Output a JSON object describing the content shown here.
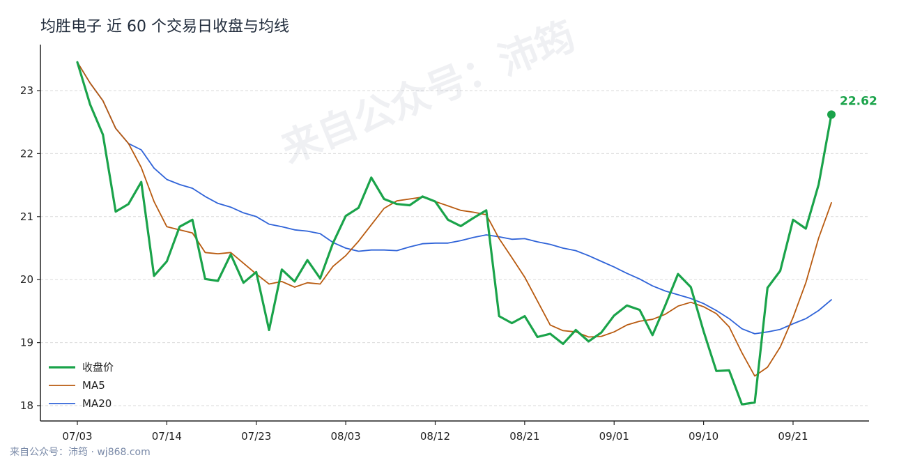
{
  "title": "均胜电子 近 60 个交易日收盘与均线",
  "watermark": "来自公众号：沛筠",
  "footer": "来自公众号：沛筠 · wj868.com",
  "last_label": "22.62",
  "colors": {
    "close": "#1aa34a",
    "ma5": "#b85a0f",
    "ma20": "#2f63d8",
    "grid": "#d9d9d9"
  },
  "chart_data": {
    "type": "line",
    "title": "均胜电子 近 60 个交易日收盘与均线",
    "xlabel": "",
    "ylabel": "",
    "ylim": [
      17.9,
      23.7
    ],
    "grid": true,
    "legend_position": "bottom-left",
    "x_tick_labels": [
      "07/03",
      "07/14",
      "07/23",
      "08/03",
      "08/12",
      "08/21",
      "09/01",
      "09/10",
      "09/21"
    ],
    "y_ticks": [
      18,
      19,
      20,
      21,
      22,
      23
    ],
    "x_tick_index": [
      0,
      7,
      14,
      21,
      28,
      35,
      42,
      49,
      56
    ],
    "series": [
      {
        "name": "收盘价",
        "values": [
          23.45,
          22.78,
          22.3,
          21.08,
          21.2,
          21.55,
          20.06,
          20.29,
          20.84,
          20.95,
          20.01,
          19.98,
          20.4,
          19.95,
          20.12,
          19.2,
          20.16,
          19.97,
          20.31,
          20.02,
          20.58,
          21.01,
          21.14,
          21.62,
          21.28,
          21.2,
          21.18,
          21.32,
          21.24,
          20.95,
          20.85,
          20.98,
          21.1,
          19.42,
          19.31,
          19.42,
          19.09,
          19.14,
          18.98,
          19.2,
          19.02,
          19.16,
          19.43,
          19.59,
          19.52,
          19.12,
          19.59,
          20.09,
          19.88,
          19.18,
          18.55,
          18.56,
          18.02,
          18.05,
          19.87,
          20.14,
          20.95,
          20.81,
          21.51,
          22.62
        ]
      },
      {
        "name": "MA5",
        "values": [
          23.45,
          23.12,
          22.84,
          22.4,
          22.16,
          21.78,
          21.24,
          20.84,
          20.79,
          20.74,
          20.43,
          20.41,
          20.43,
          20.26,
          20.09,
          19.93,
          19.97,
          19.88,
          19.95,
          19.93,
          20.21,
          20.38,
          20.61,
          20.87,
          21.13,
          21.25,
          21.28,
          21.31,
          21.24,
          21.17,
          21.1,
          21.07,
          21.03,
          20.65,
          20.35,
          20.04,
          19.66,
          19.28,
          19.19,
          19.17,
          19.09,
          19.1,
          19.17,
          19.28,
          19.34,
          19.37,
          19.45,
          19.58,
          19.64,
          19.57,
          19.46,
          19.25,
          18.84,
          18.47,
          18.61,
          18.93,
          19.4,
          19.95,
          20.66,
          21.22
        ]
      },
      {
        "name": "MA20",
        "values": [
          23.45,
          23.12,
          22.84,
          22.4,
          22.16,
          22.06,
          21.77,
          21.59,
          21.51,
          21.45,
          21.32,
          21.21,
          21.15,
          21.06,
          21.0,
          20.88,
          20.84,
          20.79,
          20.77,
          20.73,
          20.59,
          20.5,
          20.45,
          20.47,
          20.47,
          20.46,
          20.52,
          20.57,
          20.58,
          20.58,
          20.62,
          20.67,
          20.71,
          20.68,
          20.64,
          20.65,
          20.6,
          20.56,
          20.5,
          20.46,
          20.38,
          20.29,
          20.2,
          20.1,
          20.01,
          19.9,
          19.82,
          19.76,
          19.7,
          19.62,
          19.51,
          19.38,
          19.22,
          19.14,
          19.17,
          19.21,
          19.3,
          19.38,
          19.51,
          19.68
        ]
      }
    ]
  }
}
